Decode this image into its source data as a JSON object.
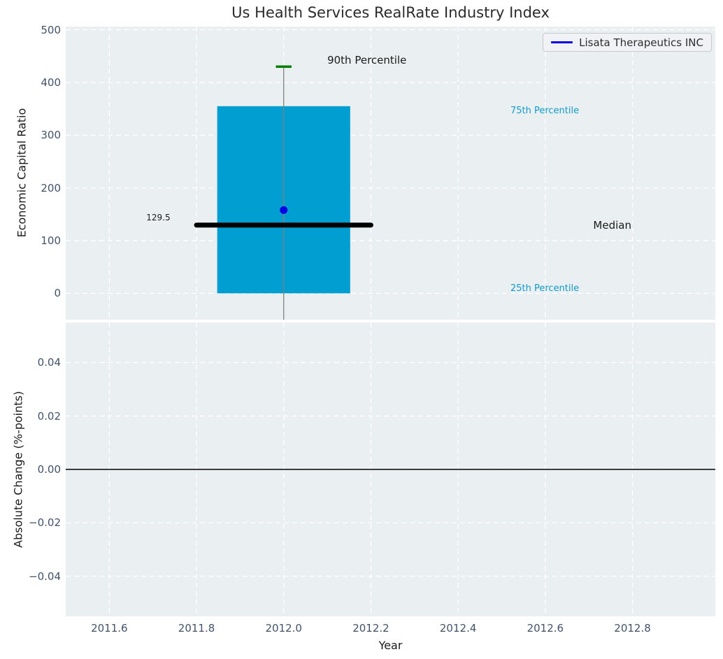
{
  "title": "Us Health Services RealRate Industry Index",
  "legend": {
    "label": "Lisata Therapeutics INC",
    "line_color": "#0000e6"
  },
  "colors": {
    "box_fill": "#009ed1",
    "median_line": "#000000",
    "p90_tick": "#008000",
    "whisker": "#808080",
    "company_dot": "#0000e6",
    "grid": "#ffffff",
    "zero_line": "#000000",
    "annotation_dark": "#1a1a1a",
    "annotation_cyan": "#119bc9"
  },
  "chart_data": [
    {
      "type": "box",
      "title": "Us Health Services RealRate Industry Index",
      "ylabel": "Economic Capital Ratio",
      "xlim": [
        2011.5,
        2012.99
      ],
      "ylim": [
        -50,
        506
      ],
      "grid": true,
      "legend_position": "upper right",
      "yticks": [
        {
          "label": "0",
          "value": 0
        },
        {
          "label": "100",
          "value": 100
        },
        {
          "label": "200",
          "value": 200
        },
        {
          "label": "300",
          "value": 300
        },
        {
          "label": "400",
          "value": 400
        },
        {
          "label": "500",
          "value": 500
        }
      ],
      "box": {
        "x": 2012.0,
        "box_halfwidth": 0.1525,
        "p25": 0,
        "median": 129.5,
        "p75": 355,
        "p90": 430,
        "median_line_halfwidth": 0.2,
        "p90_tick_halfwidth": 0.018,
        "whisker_low_visible": -50,
        "company": {
          "name": "Lisata Therapeutics INC",
          "x": 2012.0,
          "value": 158
        }
      },
      "annotations": [
        {
          "text": "90th Percentile",
          "x": 2012.1,
          "y": 442,
          "color": "#1a1a1a",
          "size": 15,
          "align": "left"
        },
        {
          "text": "75th Percentile",
          "x": 2012.52,
          "y": 346,
          "color": "#119bc9",
          "size": 13,
          "align": "left"
        },
        {
          "text": "Median",
          "x": 2012.71,
          "y": 129,
          "color": "#1a1a1a",
          "size": 15,
          "align": "left"
        },
        {
          "text": "25th Percentile",
          "x": 2012.52,
          "y": 8,
          "color": "#119bc9",
          "size": 13,
          "align": "left"
        },
        {
          "text": "129.5",
          "x": 2011.74,
          "y": 144,
          "color": "#1a1a1a",
          "size": 12,
          "align": "right"
        }
      ]
    },
    {
      "type": "line",
      "xlabel": "Year",
      "ylabel": "Absolute Change (%-points)",
      "xlim": [
        2011.5,
        2012.99
      ],
      "ylim": [
        -0.055,
        0.055
      ],
      "grid": true,
      "zero_line": 0,
      "yticks": [
        {
          "label": "0.04",
          "value": 0.04
        },
        {
          "label": "0.02",
          "value": 0.02
        },
        {
          "label": "0.00",
          "value": 0
        },
        {
          "label": "−0.02",
          "value": -0.02
        },
        {
          "label": "−0.04",
          "value": -0.04
        }
      ],
      "xticks": [
        {
          "label": "2011.6",
          "value": 2011.6
        },
        {
          "label": "2011.8",
          "value": 2011.8
        },
        {
          "label": "2012.0",
          "value": 2012.0
        },
        {
          "label": "2012.2",
          "value": 2012.2
        },
        {
          "label": "2012.4",
          "value": 2012.4
        },
        {
          "label": "2012.6",
          "value": 2012.6
        },
        {
          "label": "2012.8",
          "value": 2012.8
        }
      ]
    }
  ]
}
